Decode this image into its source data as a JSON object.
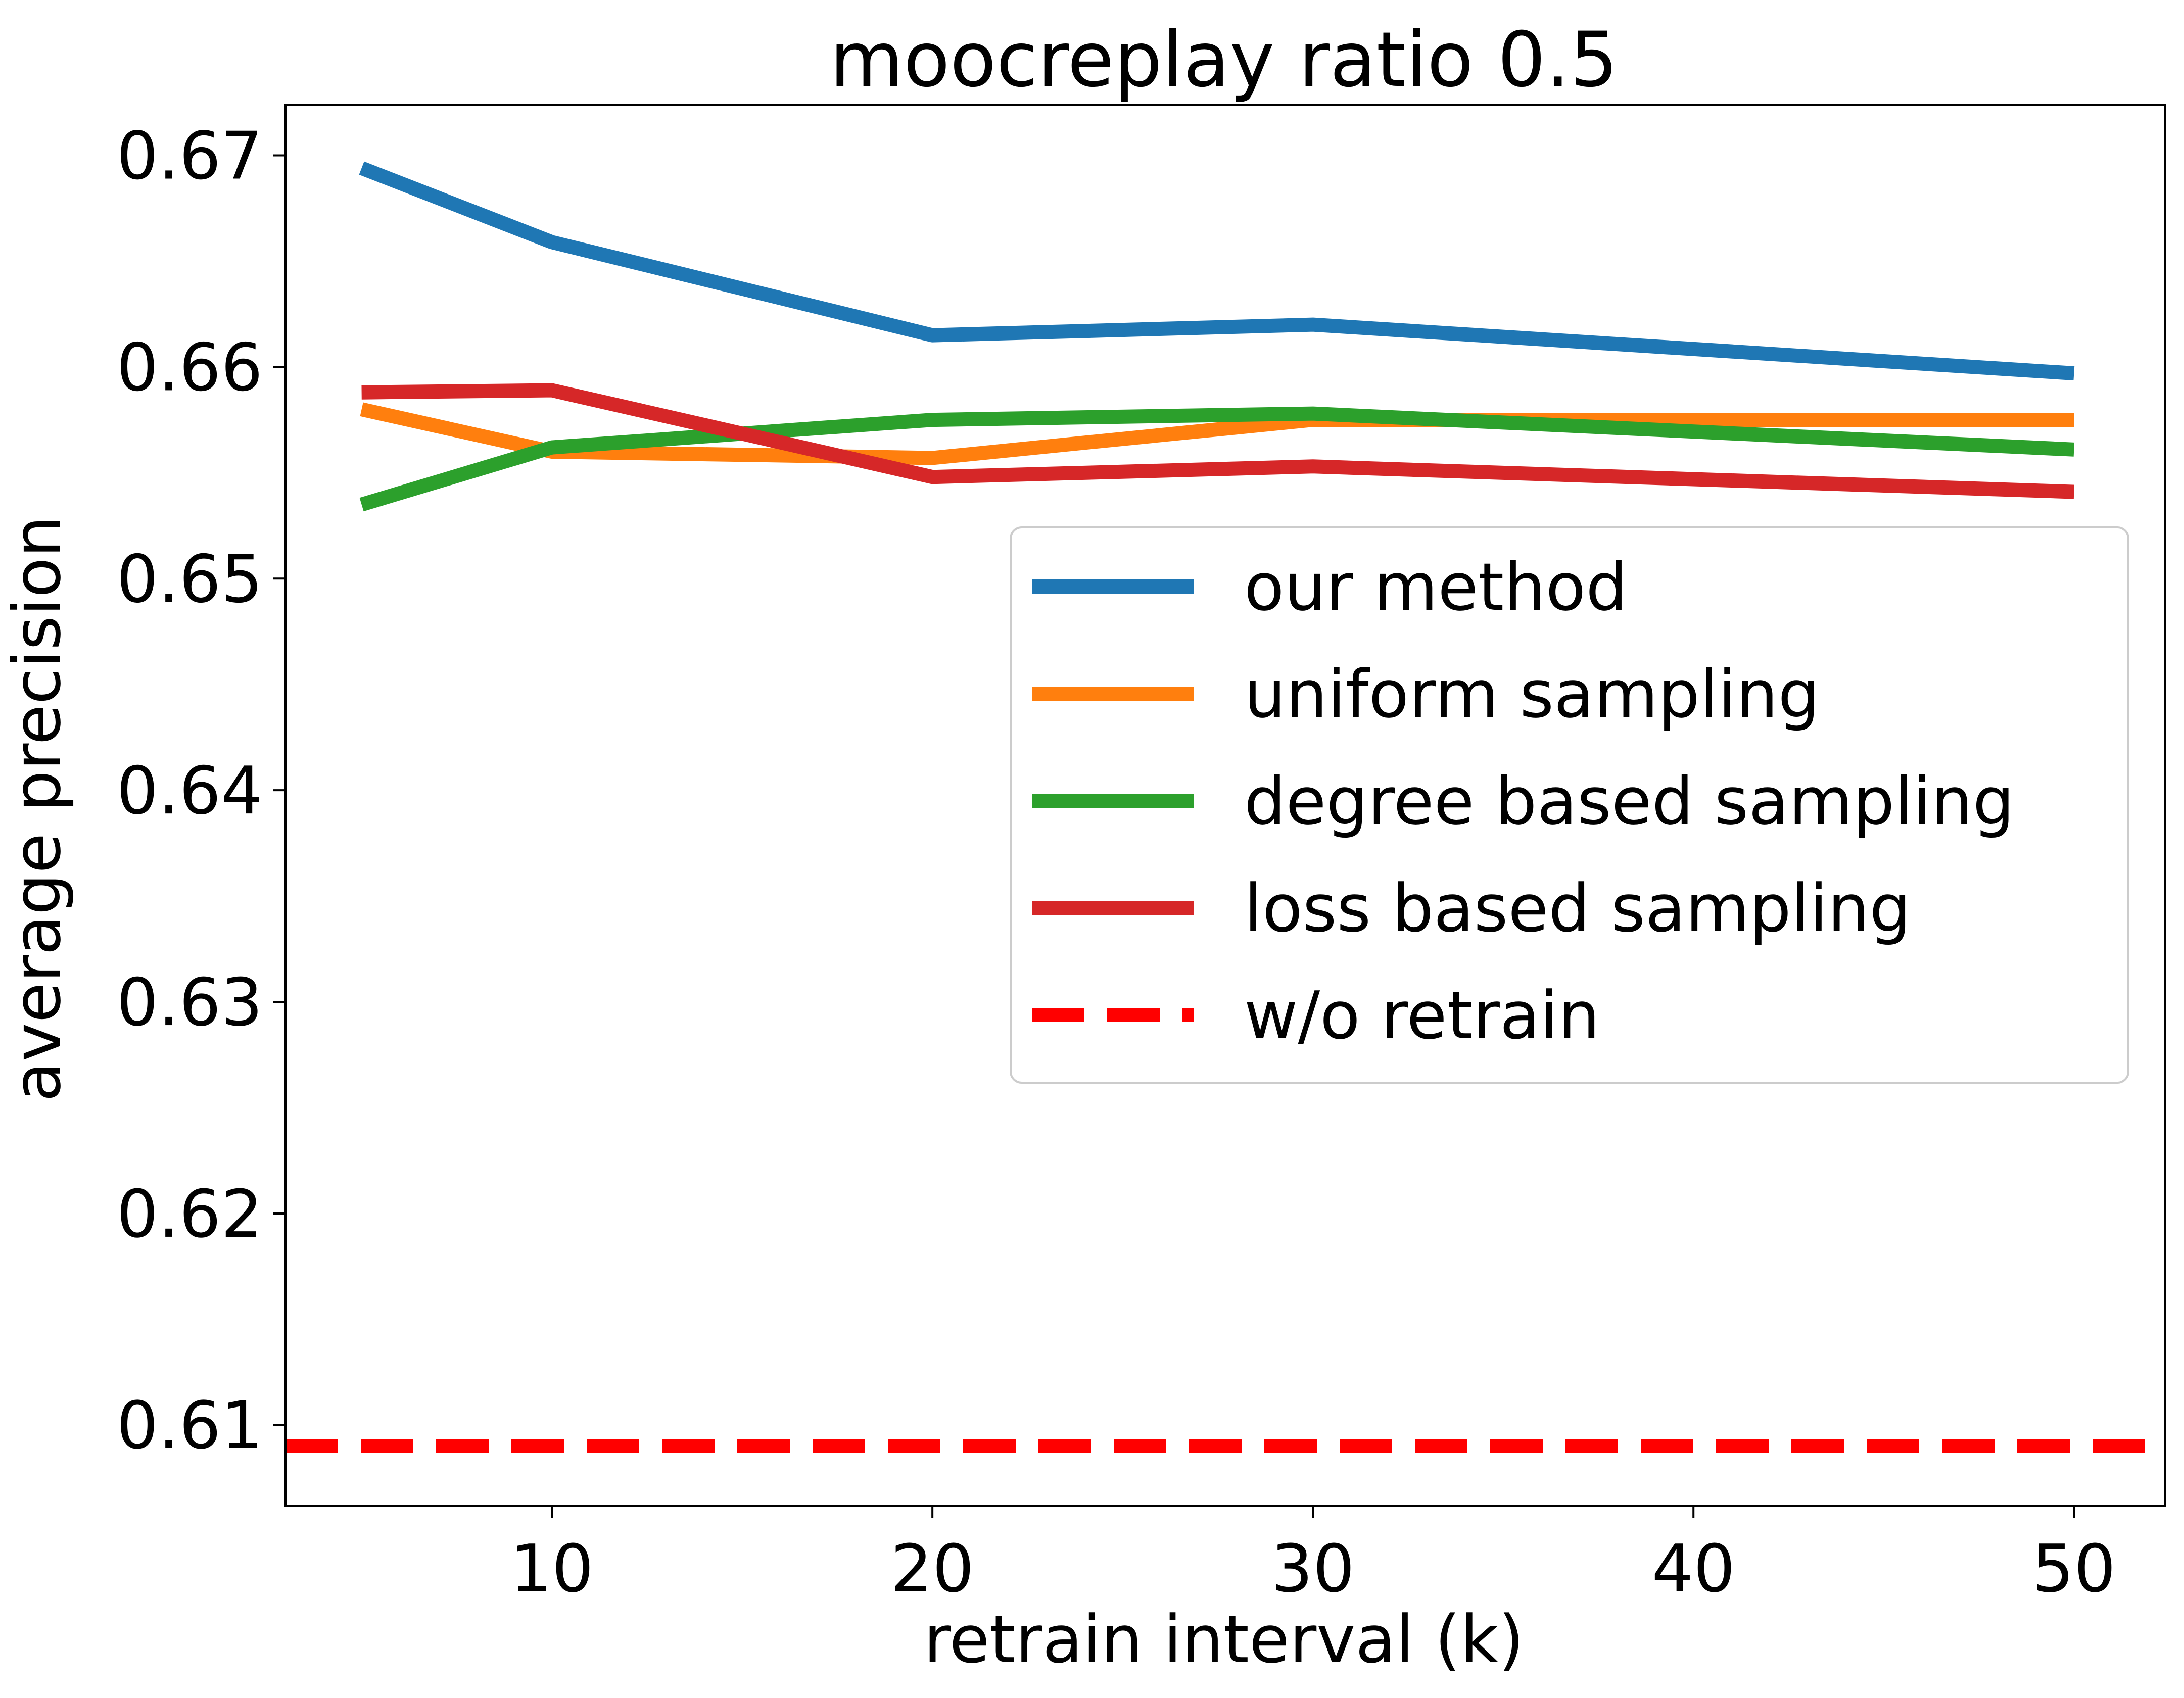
{
  "chart_data": {
    "type": "line",
    "title": "moocreplay ratio 0.5",
    "xlabel": "retrain interval (k)",
    "ylabel": "average precision",
    "x": [
      5,
      10,
      20,
      30,
      50
    ],
    "xlim": [
      3,
      52.4
    ],
    "ylim": [
      0.6062,
      0.6724
    ],
    "xticks": [
      10,
      20,
      30,
      40,
      50
    ],
    "yticks": [
      0.61,
      0.62,
      0.63,
      0.64,
      0.65,
      0.66,
      0.67
    ],
    "xtick_labels": [
      "10",
      "20",
      "30",
      "40",
      "50"
    ],
    "ytick_labels": [
      "0.61",
      "0.62",
      "0.63",
      "0.64",
      "0.65",
      "0.66",
      "0.67"
    ],
    "grid": false,
    "legend_position": "center-right",
    "series": [
      {
        "name": "our method",
        "color": "#1f77b4",
        "style": "solid",
        "values": [
          0.6694,
          0.6659,
          0.6615,
          0.662,
          0.6597
        ]
      },
      {
        "name": "uniform sampling",
        "color": "#ff7f0e",
        "style": "solid",
        "values": [
          0.658,
          0.656,
          0.6557,
          0.6575,
          0.6575
        ]
      },
      {
        "name": "degree based sampling",
        "color": "#2ca02c",
        "style": "solid",
        "values": [
          0.6535,
          0.6562,
          0.6575,
          0.6578,
          0.6561
        ]
      },
      {
        "name": "loss based sampling",
        "color": "#d62728",
        "style": "solid",
        "values": [
          0.6588,
          0.6589,
          0.6548,
          0.6553,
          0.6541
        ]
      },
      {
        "name": "w/o retrain",
        "color": "#ff0000",
        "style": "dashed",
        "hline": 0.609
      }
    ]
  }
}
